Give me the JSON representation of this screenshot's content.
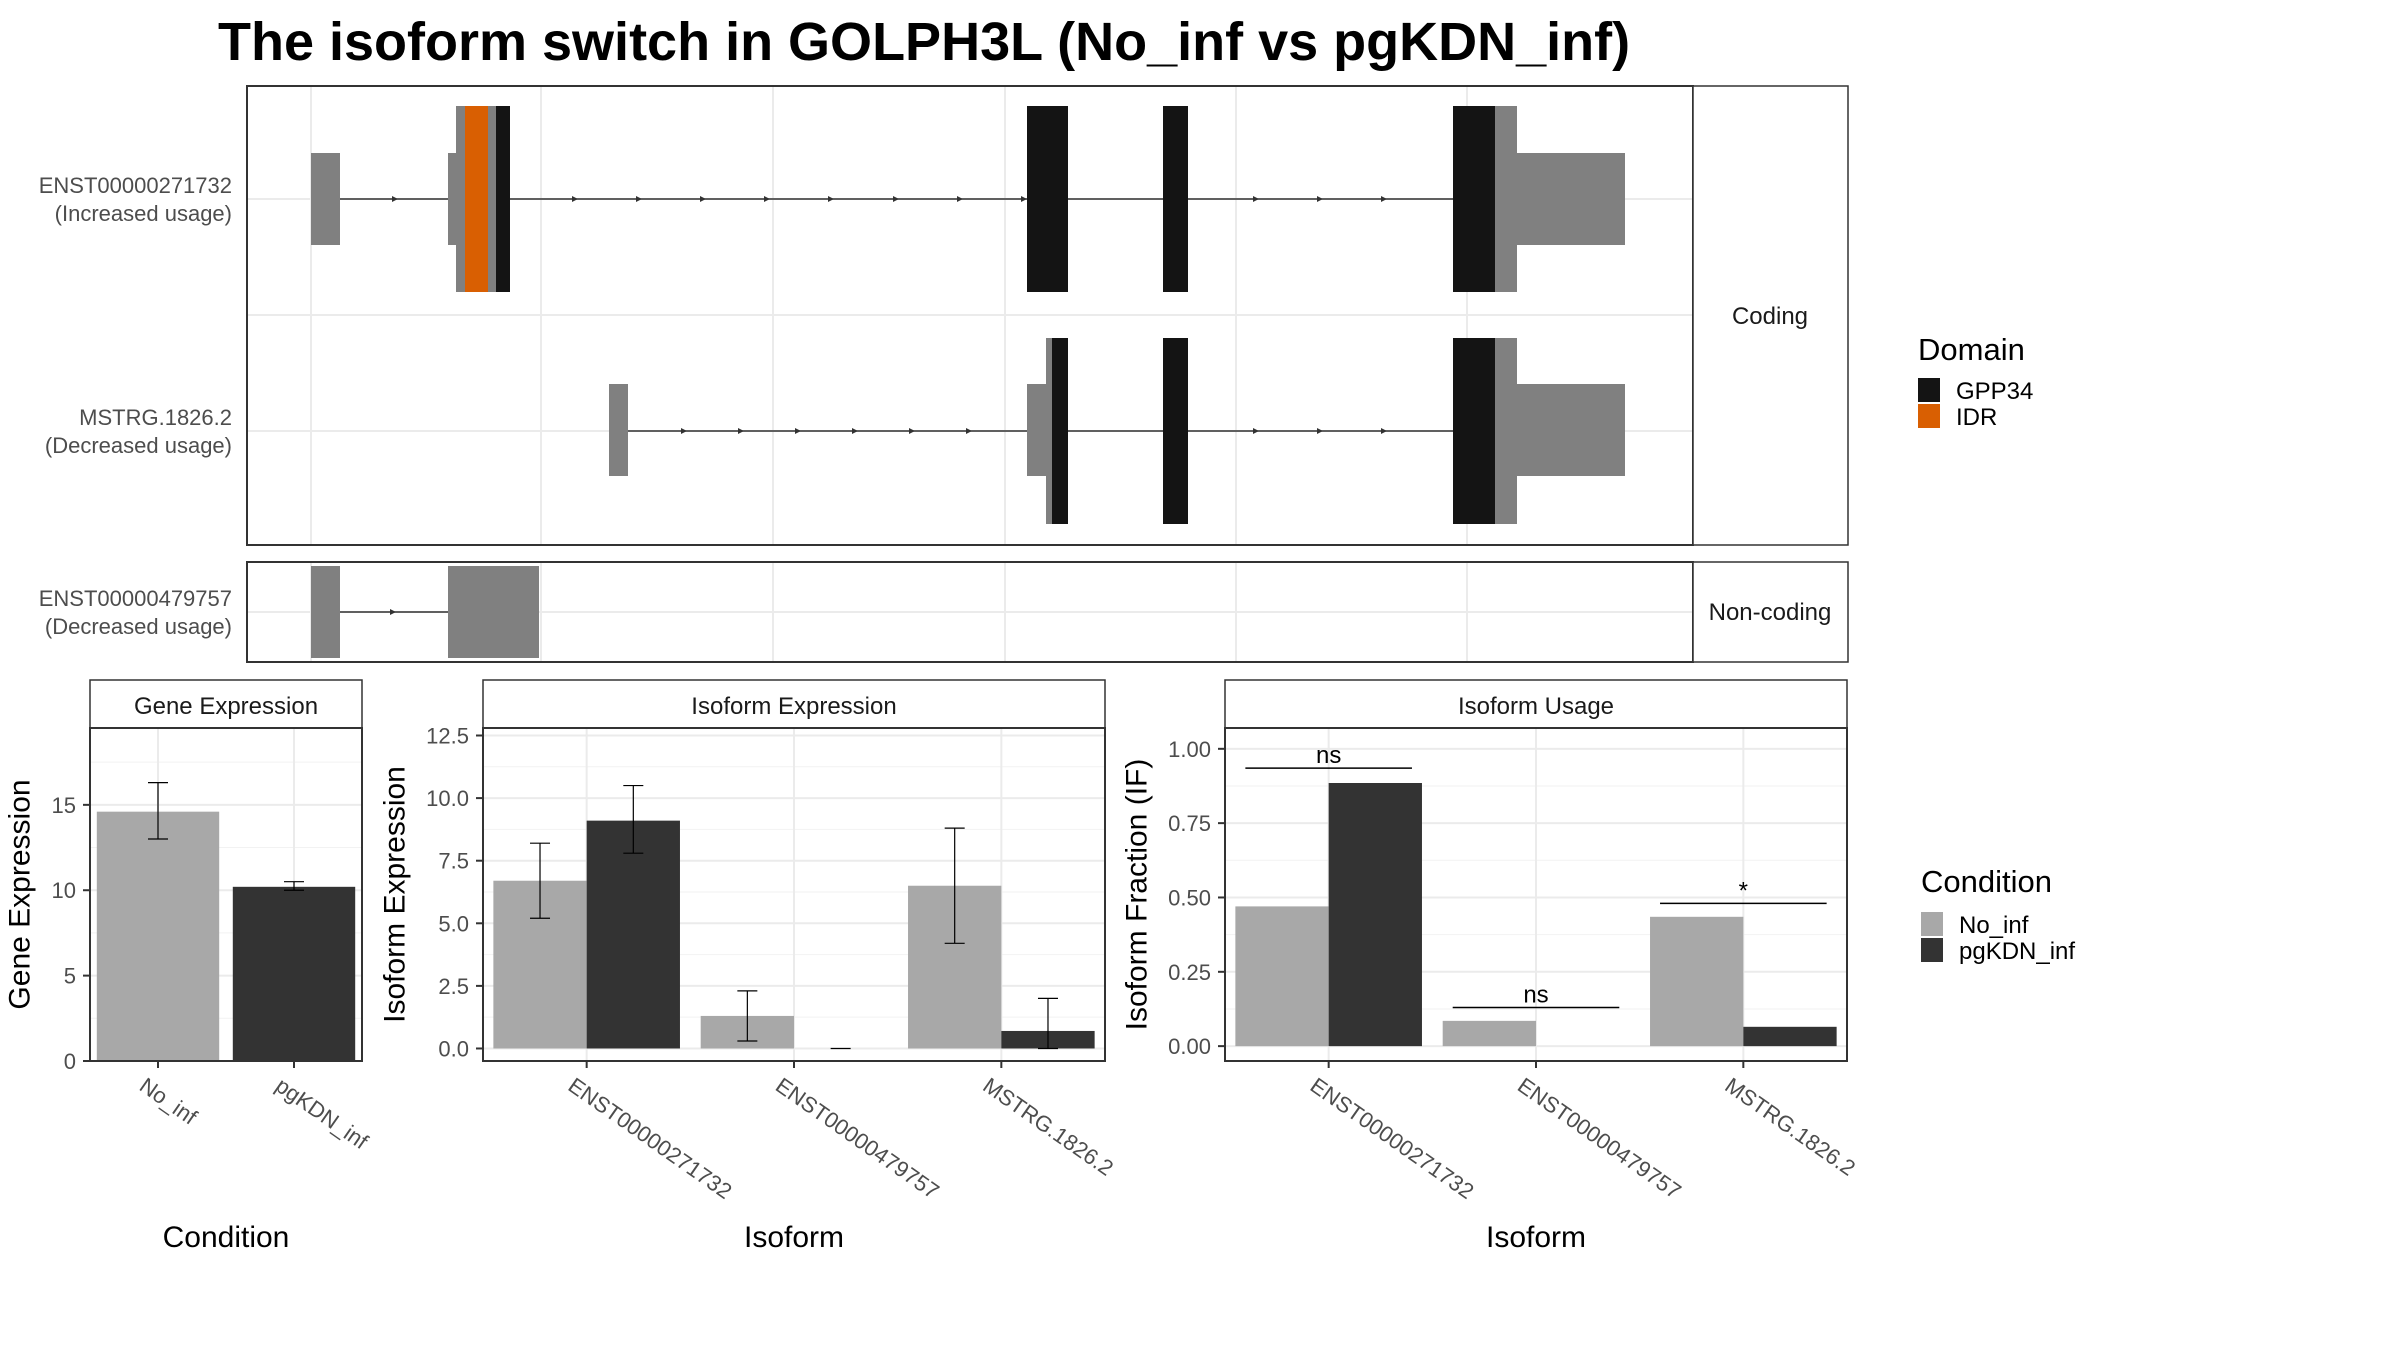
{
  "title": "The isoform switch in GOLPH3L (No_inf vs pgKDN_inf)",
  "colors": {
    "no_inf": "#a8a8a8",
    "pgkdn_inf": "#333333",
    "utr": "#808080",
    "gpp34": "#141414",
    "idr": "#d95f02"
  },
  "structure": {
    "coding_label": "Coding",
    "noncoding_label": "Non-coding",
    "transcripts": [
      {
        "id": "ENST00000271732",
        "note": "(Increased usage)",
        "group": "Coding"
      },
      {
        "id": "MSTRG.1826.2",
        "note": "(Decreased usage)",
        "group": "Coding"
      },
      {
        "id": "ENST00000479757",
        "note": "(Decreased usage)",
        "group": "Non-coding"
      }
    ],
    "domain_legend": {
      "title": "Domain",
      "items": [
        {
          "label": "GPP34",
          "color": "#141414"
        },
        {
          "label": "IDR",
          "color": "#d95f02"
        }
      ]
    }
  },
  "condition_legend": {
    "title": "Condition",
    "items": [
      {
        "label": "No_inf",
        "color": "#a8a8a8"
      },
      {
        "label": "pgKDN_inf",
        "color": "#333333"
      }
    ]
  },
  "chart_data": [
    {
      "type": "bar",
      "title": "Gene Expression",
      "xlabel": "Condition",
      "ylabel": "Gene Expression",
      "ylim": [
        0,
        19.5
      ],
      "yticks": [
        0,
        5,
        10,
        15
      ],
      "ytick_labels": [
        "0",
        "5",
        "10",
        "15"
      ],
      "categories": [
        "No_inf",
        "pgKDN_inf"
      ],
      "values": [
        14.6,
        10.2
      ],
      "errors": [
        [
          13.0,
          16.3
        ],
        [
          10.0,
          10.5
        ]
      ]
    },
    {
      "type": "bar",
      "title": "Isoform Expression",
      "xlabel": "Isoform",
      "ylabel": "Isoform Expression",
      "ylim": [
        -0.5,
        12.8
      ],
      "yticks": [
        0,
        2.5,
        5,
        7.5,
        10,
        12.5
      ],
      "ytick_labels": [
        "0.0",
        "2.5",
        "5.0",
        "7.5",
        "10.0",
        "12.5"
      ],
      "categories": [
        "ENST00000271732",
        "ENST00000479757",
        "MSTRG.1826.2"
      ],
      "series": [
        {
          "name": "No_inf",
          "values": [
            6.7,
            1.3,
            6.5
          ],
          "errors": [
            [
              5.2,
              8.2
            ],
            [
              0.3,
              2.3
            ],
            [
              4.2,
              8.8
            ]
          ]
        },
        {
          "name": "pgKDN_inf",
          "values": [
            9.1,
            0.0,
            0.7
          ],
          "errors": [
            [
              7.8,
              10.5
            ],
            [
              0.0,
              0.0
            ],
            [
              0.0,
              2.0
            ]
          ]
        }
      ]
    },
    {
      "type": "bar",
      "title": "Isoform Usage",
      "xlabel": "Isoform",
      "ylabel": "Isoform Fraction (IF)",
      "ylim": [
        -0.05,
        1.07
      ],
      "yticks": [
        0,
        0.25,
        0.5,
        0.75,
        1.0
      ],
      "ytick_labels": [
        "0.00",
        "0.25",
        "0.50",
        "0.75",
        "1.00"
      ],
      "categories": [
        "ENST00000271732",
        "ENST00000479757",
        "MSTRG.1826.2"
      ],
      "series": [
        {
          "name": "No_inf",
          "values": [
            0.47,
            0.085,
            0.435
          ]
        },
        {
          "name": "pgKDN_inf",
          "values": [
            0.885,
            0.0,
            0.065
          ]
        }
      ],
      "annotations": [
        {
          "category": "ENST00000271732",
          "label": "ns",
          "y": 0.935
        },
        {
          "category": "ENST00000479757",
          "label": "ns",
          "y": 0.13
        },
        {
          "category": "MSTRG.1826.2",
          "label": "*",
          "y": 0.48
        }
      ]
    }
  ]
}
